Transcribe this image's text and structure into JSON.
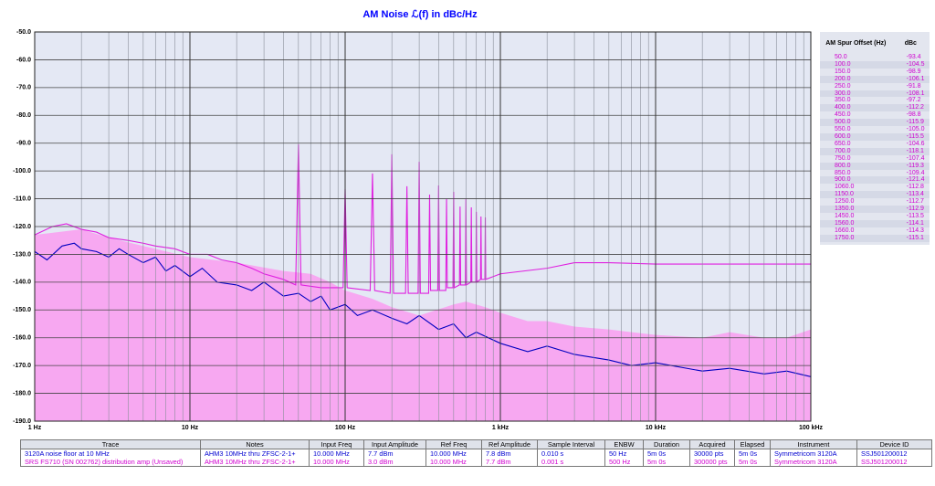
{
  "chart_data": {
    "type": "line",
    "title": "AM Noise ℒ(f) in dBc/Hz",
    "xlim": [
      1,
      100000
    ],
    "log_x": true,
    "xticks": [
      {
        "value": 1,
        "label": "1 Hz"
      },
      {
        "value": 10,
        "label": "10 Hz"
      },
      {
        "value": 100,
        "label": "100 Hz"
      },
      {
        "value": 1000,
        "label": "1 kHz"
      },
      {
        "value": 10000,
        "label": "10 kHz"
      },
      {
        "value": 100000,
        "label": "100 kHz"
      }
    ],
    "xminorticks": [
      2,
      3,
      4,
      5,
      6,
      7,
      8,
      9,
      20,
      30,
      40,
      50,
      60,
      70,
      80,
      90,
      200,
      300,
      400,
      500,
      600,
      700,
      800,
      900,
      2000,
      3000,
      4000,
      5000,
      6000,
      7000,
      8000,
      9000,
      20000,
      30000,
      40000,
      50000,
      60000,
      70000,
      80000,
      90000
    ],
    "ylim": [
      -190,
      -50
    ],
    "yticks": [
      {
        "value": -50,
        "label": "-50.0"
      },
      {
        "value": -60,
        "label": "-60.0"
      },
      {
        "value": -70,
        "label": "-70.0"
      },
      {
        "value": -80,
        "label": "-80.0"
      },
      {
        "value": -90,
        "label": "-90.0"
      },
      {
        "value": -100,
        "label": "-100.0"
      },
      {
        "value": -110,
        "label": "-110.0"
      },
      {
        "value": -120,
        "label": "-120.0"
      },
      {
        "value": -130,
        "label": "-130.0"
      },
      {
        "value": -140,
        "label": "-140.0"
      },
      {
        "value": -150,
        "label": "-150.0"
      },
      {
        "value": -160,
        "label": "-160.0"
      },
      {
        "value": -170,
        "label": "-170.0"
      },
      {
        "value": -180,
        "label": "-180.0"
      },
      {
        "value": -190,
        "label": "-190.0"
      }
    ],
    "grid": true,
    "background": "#e4e8f4",
    "series": [
      {
        "style": "area",
        "color": "#f7a8f1",
        "x": [
          1,
          2,
          3,
          5,
          10,
          20,
          40,
          60,
          80,
          100,
          150,
          200,
          300,
          500,
          600,
          800,
          1000,
          1500,
          2000,
          3000,
          5000,
          7000,
          10000,
          20000,
          30000,
          50000,
          70000,
          100000
        ],
        "values": [
          -123,
          -121,
          -124,
          -127,
          -131,
          -133,
          -136,
          -137,
          -140,
          -143,
          -146,
          -149,
          -152,
          -148,
          -147,
          -149,
          -151,
          -154,
          -154,
          -156,
          -157,
          -158,
          -159,
          -160,
          -158,
          -160,
          -160,
          -157
        ]
      },
      {
        "style": "line",
        "color": "#e020e0",
        "x": [
          1,
          1.3,
          1.6,
          2,
          2.5,
          3,
          4,
          5,
          6,
          8,
          10,
          13,
          16,
          20,
          25,
          30,
          40,
          48,
          50,
          52,
          70,
          97,
          100,
          103,
          145,
          150,
          155,
          195,
          200,
          205,
          245,
          250,
          255,
          295,
          300,
          305,
          345,
          350,
          355,
          395,
          400,
          405,
          445,
          450,
          455,
          495,
          500,
          505,
          545,
          550,
          555,
          595,
          600,
          605,
          645,
          650,
          655,
          695,
          700,
          705,
          745,
          750,
          755,
          795,
          800,
          805,
          900,
          1000,
          2000,
          3000,
          5000,
          10000,
          30000,
          100000
        ],
        "values": [
          -123,
          -120,
          -119,
          -121,
          -122,
          -124,
          -125,
          -126,
          -127,
          -128,
          -130,
          -130,
          -132,
          -133,
          -135,
          -137,
          -139,
          -141,
          -90.4,
          -141,
          -142,
          -142,
          -106.5,
          -142,
          -143,
          -100.9,
          -143,
          -144,
          -94,
          -144,
          -144,
          -105.5,
          -144,
          -144,
          -96.7,
          -144,
          -144,
          -108.5,
          -143,
          -143,
          -105.2,
          -143,
          -143,
          -110.1,
          -142,
          -142,
          -107.5,
          -142,
          -141,
          -112.8,
          -141,
          -141,
          -110.1,
          -141,
          -140,
          -113.1,
          -140,
          -140,
          -114.7,
          -140,
          -139,
          -116.4,
          -139,
          -139,
          -116.7,
          -139,
          -138,
          -137,
          -135,
          -133,
          -133,
          -133.5,
          -133.5,
          -133.5
        ]
      },
      {
        "style": "line",
        "color": "#0000c0",
        "x": [
          1,
          1.2,
          1.5,
          1.8,
          2,
          2.5,
          3,
          3.5,
          4,
          5,
          6,
          7,
          8,
          10,
          12,
          15,
          20,
          25,
          30,
          40,
          50,
          60,
          70,
          80,
          100,
          120,
          150,
          200,
          250,
          300,
          400,
          500,
          600,
          700,
          1000,
          1500,
          2000,
          3000,
          5000,
          7000,
          10000,
          20000,
          30000,
          50000,
          70000,
          100000
        ],
        "values": [
          -129,
          -132,
          -127,
          -126,
          -128,
          -129,
          -131,
          -128,
          -130,
          -133,
          -131,
          -136,
          -134,
          -138,
          -135,
          -140,
          -141,
          -143,
          -140,
          -145,
          -144,
          -147,
          -145,
          -150,
          -148,
          -152,
          -150,
          -153,
          -155,
          -152,
          -157,
          -155,
          -160,
          -158,
          -162,
          -165,
          -163,
          -166,
          -168,
          -170,
          -169,
          -172,
          -171,
          -173,
          -172,
          -174
        ]
      }
    ]
  },
  "spur_table": {
    "headers": [
      "AM Spur Offset (Hz)",
      "dBc"
    ],
    "color": "#d000d0",
    "rows": [
      [
        "50.0",
        "-93.4"
      ],
      [
        "100.0",
        "-104.5"
      ],
      [
        "150.0",
        "-98.9"
      ],
      [
        "200.0",
        "-106.1"
      ],
      [
        "250.0",
        "-91.8"
      ],
      [
        "300.0",
        "-108.1"
      ],
      [
        "350.0",
        "-97.2"
      ],
      [
        "400.0",
        "-112.2"
      ],
      [
        "450.0",
        "-98.8"
      ],
      [
        "500.0",
        "-115.9"
      ],
      [
        "550.0",
        "-105.0"
      ],
      [
        "600.0",
        "-115.5"
      ],
      [
        "650.0",
        "-104.6"
      ],
      [
        "700.0",
        "-118.1"
      ],
      [
        "750.0",
        "-107.4"
      ],
      [
        "800.0",
        "-119.3"
      ],
      [
        "850.0",
        "-109.4"
      ],
      [
        "900.0",
        "-121.4"
      ],
      [
        "1060.0",
        "-112.8"
      ],
      [
        "1150.0",
        "-113.4"
      ],
      [
        "1250.0",
        "-112.7"
      ],
      [
        "1350.0",
        "-112.9"
      ],
      [
        "1450.0",
        "-113.5"
      ],
      [
        "1560.0",
        "-114.1"
      ],
      [
        "1660.0",
        "-114.3"
      ],
      [
        "1750.0",
        "-115.1"
      ]
    ]
  },
  "trace_table": {
    "headers": [
      "Trace",
      "Notes",
      "Input Freq",
      "Input Amplitude",
      "Ref Freq",
      "Ref Amplitude",
      "Sample Interval",
      "ENBW",
      "Duration",
      "Acquired",
      "Elapsed",
      "Instrument",
      "Device ID"
    ],
    "row_colors": [
      "#0000d0",
      "#d000d0"
    ],
    "rows": [
      [
        "3120A noise floor at 10 MHz",
        "AHM3 10MHz thru ZFSC-2-1+",
        "10.000 MHz",
        "7.7 dBm",
        "10.000 MHz",
        "7.8 dBm",
        "0.010 s",
        "50 Hz",
        "5m 0s",
        "30000 pts",
        "5m 0s",
        "Symmetricom 3120A",
        "SSJ501200012"
      ],
      [
        "SRS FS710 (SN 002762) distribution amp (Unsaved)",
        "AHM3 10MHz thru ZFSC-2-1+",
        "10.000 MHz",
        "3.0 dBm",
        "10.000 MHz",
        "7.7 dBm",
        "0.001 s",
        "500 Hz",
        "5m 0s",
        "300000 pts",
        "5m 0s",
        "Symmetricom 3120A",
        "SSJ501200012"
      ]
    ]
  }
}
